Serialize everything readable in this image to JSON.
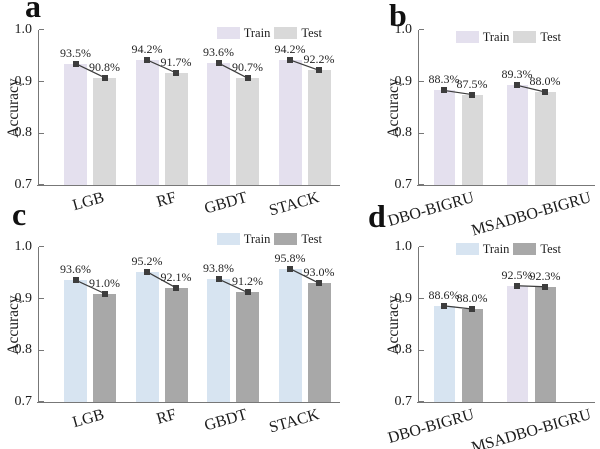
{
  "figure": {
    "background": "#ffffff",
    "axis_color": "#777777",
    "marker_color": "#3d3d3d",
    "text_color": "#1c1c1c"
  },
  "chart_data": [
    {
      "id": "a",
      "panel_label": "a",
      "type": "bar",
      "ylabel": "Accuracy",
      "ylim": [
        0.7,
        1.0
      ],
      "yticks": [
        1.0,
        0.9,
        0.8,
        0.7
      ],
      "ytick_labels": [
        "1.0",
        "0.9",
        "0.8",
        "0.7"
      ],
      "grid": false,
      "legend_position": "top-right-inside",
      "categories": [
        "LGB",
        "RF",
        "GBDT",
        "STACK"
      ],
      "series": [
        {
          "name": "Train",
          "color": "#e4e0ee",
          "values": [
            0.935,
            0.942,
            0.936,
            0.942
          ],
          "value_labels": [
            "93.5%",
            "94.2%",
            "93.6%",
            "94.2%"
          ]
        },
        {
          "name": "Test",
          "color": "#d9d9d9",
          "values": [
            0.908,
            0.917,
            0.907,
            0.922
          ],
          "value_labels": [
            "90.8%",
            "91.7%",
            "90.7%",
            "92.2%"
          ]
        }
      ],
      "legend": [
        {
          "label": "Train",
          "color": "#e4e0ee"
        },
        {
          "label": "Test",
          "color": "#d9d9d9"
        }
      ]
    },
    {
      "id": "b",
      "panel_label": "b",
      "type": "bar",
      "ylabel": "Accuracy",
      "ylim": [
        0.7,
        1.0
      ],
      "yticks": [
        1.0,
        0.9,
        0.8,
        0.7
      ],
      "ytick_labels": [
        "1.0",
        "0.9",
        "0.8",
        "0.7"
      ],
      "grid": false,
      "legend_position": "top-right-inside",
      "categories": [
        "DBO-BIGRU",
        "MSADBO-BIGRU"
      ],
      "series": [
        {
          "name": "Train",
          "color": "#e4e0ee",
          "values": [
            0.883,
            0.893
          ],
          "value_labels": [
            "88.3%",
            "89.3%"
          ]
        },
        {
          "name": "Test",
          "color": "#d9d9d9",
          "values": [
            0.875,
            0.88
          ],
          "value_labels": [
            "87.5%",
            "88.0%"
          ]
        }
      ],
      "legend": [
        {
          "label": "Train",
          "color": "#e4e0ee"
        },
        {
          "label": "Test",
          "color": "#d9d9d9"
        }
      ]
    },
    {
      "id": "c",
      "panel_label": "c",
      "type": "bar",
      "ylabel": "Accuracy",
      "ylim": [
        0.7,
        1.0
      ],
      "yticks": [
        1.0,
        0.9,
        0.8,
        0.7
      ],
      "ytick_labels": [
        "1.0",
        "0.9",
        "0.8",
        "0.7"
      ],
      "grid": false,
      "legend_position": "top-right-inside",
      "categories": [
        "LGB",
        "RF",
        "GBDT",
        "STACK"
      ],
      "series": [
        {
          "name": "Train",
          "color": "#d7e4f1",
          "values": [
            0.936,
            0.952,
            0.938,
            0.958
          ],
          "value_labels": [
            "93.6%",
            "95.2%",
            "93.8%",
            "95.8%"
          ]
        },
        {
          "name": "Test",
          "color": "#a8a8a8",
          "values": [
            0.91,
            0.921,
            0.912,
            0.93
          ],
          "value_labels": [
            "91.0%",
            "92.1%",
            "91.2%",
            "93.0%"
          ]
        }
      ],
      "legend": [
        {
          "label": "Train",
          "color": "#d7e4f1"
        },
        {
          "label": "Test",
          "color": "#a8a8a8"
        }
      ]
    },
    {
      "id": "d",
      "panel_label": "d",
      "type": "bar",
      "ylabel": "Accuracy",
      "ylim": [
        0.7,
        1.0
      ],
      "yticks": [
        1.0,
        0.9,
        0.8,
        0.7
      ],
      "ytick_labels": [
        "1.0",
        "0.9",
        "0.8",
        "0.7"
      ],
      "grid": false,
      "legend_position": "top-right-inside",
      "categories": [
        "DBO-BIGRU",
        "MSADBO-BIGRU"
      ],
      "series": [
        {
          "name": "Train",
          "color": "#d7e4f1",
          "colors": [
            "#d7e4f1",
            "#e4e0ee"
          ],
          "values": [
            0.886,
            0.925
          ],
          "value_labels": [
            "88.6%",
            "92.5%"
          ]
        },
        {
          "name": "Test",
          "color": "#a8a8a8",
          "values": [
            0.88,
            0.923
          ],
          "value_labels": [
            "88.0%",
            "92.3%"
          ]
        }
      ],
      "legend": [
        {
          "label": "Train",
          "color": "#d7e4f1"
        },
        {
          "label": "Test",
          "color": "#a8a8a8"
        }
      ]
    }
  ]
}
